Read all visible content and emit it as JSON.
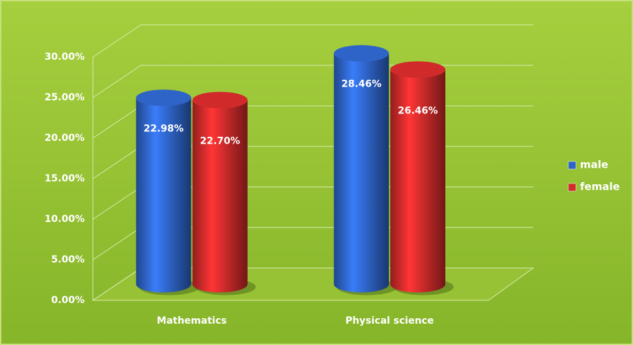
{
  "chart_data": {
    "type": "bar3d",
    "categories": [
      "Mathematics",
      "Physical science"
    ],
    "series": [
      {
        "name": "male",
        "color": "#2e64c8",
        "values": [
          22.98,
          28.46
        ],
        "value_labels": [
          "22.98%",
          "28.46%"
        ]
      },
      {
        "name": "female",
        "color": "#d02a2a",
        "values": [
          22.7,
          26.46
        ],
        "value_labels": [
          "22.70%",
          "26.46%"
        ]
      }
    ],
    "ylim": [
      0,
      30
    ],
    "yticks": [
      {
        "value": 0,
        "label": "0.00%"
      },
      {
        "value": 5,
        "label": "5.00%"
      },
      {
        "value": 10,
        "label": "10.00%"
      },
      {
        "value": 15,
        "label": "15.00%"
      },
      {
        "value": 20,
        "label": "20.00%"
      },
      {
        "value": 25,
        "label": "25.00%"
      },
      {
        "value": 30,
        "label": "30.00%"
      }
    ],
    "grid": true,
    "legend": "right"
  }
}
